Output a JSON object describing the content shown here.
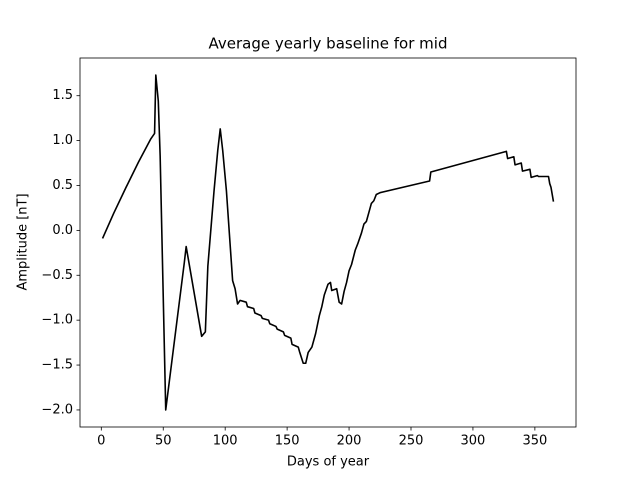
{
  "chart_data": {
    "type": "line",
    "title": "Average yearly baseline for mid",
    "x_label": "Days of year",
    "y_label": "Amplitude [nT]",
    "xlim": [
      -17.2,
      383.2
    ],
    "ylim": [
      -2.19,
      1.92
    ],
    "xticks": [
      0,
      50,
      100,
      150,
      200,
      250,
      300,
      350
    ],
    "yticks": [
      {
        "value": -2.0,
        "label": "−2.0"
      },
      {
        "value": -1.5,
        "label": "−1.5"
      },
      {
        "value": -1.0,
        "label": "−1.0"
      },
      {
        "value": -0.5,
        "label": "−0.5"
      },
      {
        "value": 0.0,
        "label": "0.0"
      },
      0.5,
      {
        "value": 1.0,
        "label": "1.0"
      },
      1.5
    ],
    "grid": false,
    "series": [
      {
        "name": "mid",
        "color": "#000000",
        "x": [
          1,
          10,
          20,
          30,
          40,
          43,
          44,
          46,
          47.5,
          52,
          67,
          68.5,
          81,
          84,
          86,
          91,
          94,
          96,
          98,
          101,
          106,
          108,
          110,
          112,
          117,
          118,
          123,
          124,
          129,
          130,
          135,
          136,
          141,
          142,
          147,
          148,
          153,
          154,
          159,
          160,
          163,
          165,
          167,
          170,
          173,
          176,
          178,
          180,
          183,
          185,
          186,
          190,
          192,
          194,
          196,
          198,
          200,
          202,
          205,
          207,
          210,
          212,
          214,
          216,
          218,
          220,
          222,
          225,
          265,
          266,
          327,
          328,
          333,
          334,
          339,
          340,
          346,
          347,
          352,
          353,
          361,
          362,
          363,
          365
        ],
        "values": [
          -0.09,
          0.19,
          0.48,
          0.76,
          1.02,
          1.08,
          1.73,
          1.44,
          0.83,
          -2.0,
          -0.36,
          -0.18,
          -1.18,
          -1.13,
          -0.4,
          0.44,
          0.89,
          1.13,
          0.89,
          0.44,
          -0.56,
          -0.65,
          -0.82,
          -0.78,
          -0.8,
          -0.85,
          -0.87,
          -0.92,
          -0.95,
          -0.98,
          -1.0,
          -1.04,
          -1.07,
          -1.1,
          -1.13,
          -1.17,
          -1.2,
          -1.27,
          -1.3,
          -1.35,
          -1.48,
          -1.48,
          -1.36,
          -1.3,
          -1.15,
          -0.95,
          -0.85,
          -0.72,
          -0.6,
          -0.58,
          -0.67,
          -0.65,
          -0.8,
          -0.82,
          -0.68,
          -0.58,
          -0.45,
          -0.38,
          -0.22,
          -0.15,
          -0.03,
          0.07,
          0.1,
          0.2,
          0.3,
          0.33,
          0.4,
          0.42,
          0.55,
          0.65,
          0.88,
          0.8,
          0.82,
          0.73,
          0.75,
          0.66,
          0.68,
          0.59,
          0.61,
          0.6,
          0.6,
          0.52,
          0.48,
          0.32
        ]
      }
    ]
  }
}
